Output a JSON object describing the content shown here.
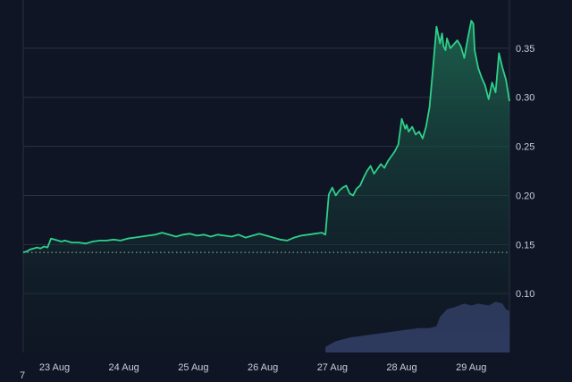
{
  "chart_data": {
    "type": "area",
    "title": "",
    "xlabel": "",
    "ylabel": "",
    "ylim": [
      0.04,
      0.39
    ],
    "y_ticks": [
      0.1,
      0.15,
      0.2,
      0.25,
      0.3,
      0.35
    ],
    "y_tick_labels": [
      "0.10",
      "0.15",
      "0.20",
      "0.25",
      "0.30",
      "0.35"
    ],
    "x_tick_labels": [
      "23 Aug",
      "24 Aug",
      "25 Aug",
      "26 Aug",
      "27 Aug",
      "28 Aug",
      "29 Aug"
    ],
    "x_range_days": [
      0,
      7
    ],
    "x_tick_positions_days": [
      0.45,
      1.45,
      2.45,
      3.45,
      4.45,
      5.45,
      6.45
    ],
    "reference_line": 0.142,
    "grid": true,
    "axis_position": "right",
    "colors": {
      "background": "#0f1524",
      "grid": "#2a3243",
      "line": "#2fd08a",
      "area_top": "#1f6e54",
      "area_bottom": "#101a26",
      "volume": "#3b4675",
      "reference": "#cfd4dd"
    },
    "series": [
      {
        "x_days": [
          0.0,
          0.05,
          0.1,
          0.15,
          0.2,
          0.25,
          0.3,
          0.35,
          0.4,
          0.45,
          0.5,
          0.55,
          0.6,
          0.65,
          0.7,
          0.8,
          0.9,
          1.0,
          1.1,
          1.2,
          1.3,
          1.4,
          1.5,
          1.6,
          1.7,
          1.8,
          1.9,
          2.0,
          2.1,
          2.2,
          2.3,
          2.4,
          2.5,
          2.6,
          2.7,
          2.8,
          2.9,
          3.0,
          3.1,
          3.2,
          3.3,
          3.4,
          3.5,
          3.6,
          3.7,
          3.8,
          3.9,
          4.0,
          4.1,
          4.2,
          4.3,
          4.35,
          4.38,
          4.4,
          4.45,
          4.5,
          4.55,
          4.6,
          4.65,
          4.7,
          4.75,
          4.8,
          4.85,
          4.9,
          4.95,
          5.0,
          5.05,
          5.1,
          5.15,
          5.2,
          5.25,
          5.3,
          5.35,
          5.4,
          5.45,
          5.5,
          5.52,
          5.55,
          5.6,
          5.65,
          5.7,
          5.75,
          5.8,
          5.85,
          5.9,
          5.95,
          6.0,
          6.03,
          6.05,
          6.08,
          6.1,
          6.15,
          6.2,
          6.25,
          6.3,
          6.35,
          6.4,
          6.45,
          6.48,
          6.5,
          6.55,
          6.6,
          6.65,
          6.7,
          6.75,
          6.8,
          6.85,
          6.9,
          6.95,
          7.0
        ],
        "y": [
          0.142,
          0.143,
          0.145,
          0.146,
          0.147,
          0.146,
          0.148,
          0.147,
          0.156,
          0.155,
          0.154,
          0.153,
          0.154,
          0.153,
          0.152,
          0.152,
          0.151,
          0.153,
          0.154,
          0.154,
          0.155,
          0.154,
          0.156,
          0.157,
          0.158,
          0.159,
          0.16,
          0.162,
          0.16,
          0.158,
          0.16,
          0.161,
          0.159,
          0.16,
          0.158,
          0.16,
          0.159,
          0.158,
          0.16,
          0.157,
          0.159,
          0.161,
          0.159,
          0.157,
          0.155,
          0.154,
          0.157,
          0.159,
          0.16,
          0.161,
          0.162,
          0.16,
          0.185,
          0.201,
          0.208,
          0.2,
          0.205,
          0.208,
          0.21,
          0.202,
          0.2,
          0.207,
          0.21,
          0.218,
          0.225,
          0.23,
          0.222,
          0.227,
          0.232,
          0.228,
          0.235,
          0.24,
          0.245,
          0.252,
          0.278,
          0.268,
          0.272,
          0.265,
          0.27,
          0.262,
          0.265,
          0.258,
          0.27,
          0.29,
          0.33,
          0.372,
          0.355,
          0.365,
          0.352,
          0.348,
          0.36,
          0.35,
          0.354,
          0.358,
          0.352,
          0.34,
          0.36,
          0.378,
          0.375,
          0.348,
          0.33,
          0.32,
          0.312,
          0.298,
          0.315,
          0.305,
          0.345,
          0.33,
          0.318,
          0.296
        ]
      }
    ],
    "volume": {
      "x_days": [
        4.35,
        4.5,
        4.7,
        4.9,
        5.1,
        5.3,
        5.5,
        5.7,
        5.85,
        5.95,
        6.0,
        6.1,
        6.2,
        6.35,
        6.45,
        6.55,
        6.7,
        6.8,
        6.9,
        6.95,
        7.0
      ],
      "fraction": [
        0.06,
        0.12,
        0.16,
        0.18,
        0.2,
        0.22,
        0.24,
        0.26,
        0.26,
        0.28,
        0.38,
        0.46,
        0.48,
        0.52,
        0.5,
        0.52,
        0.5,
        0.54,
        0.52,
        0.46,
        0.44
      ]
    }
  },
  "watermark_glyph": "7"
}
